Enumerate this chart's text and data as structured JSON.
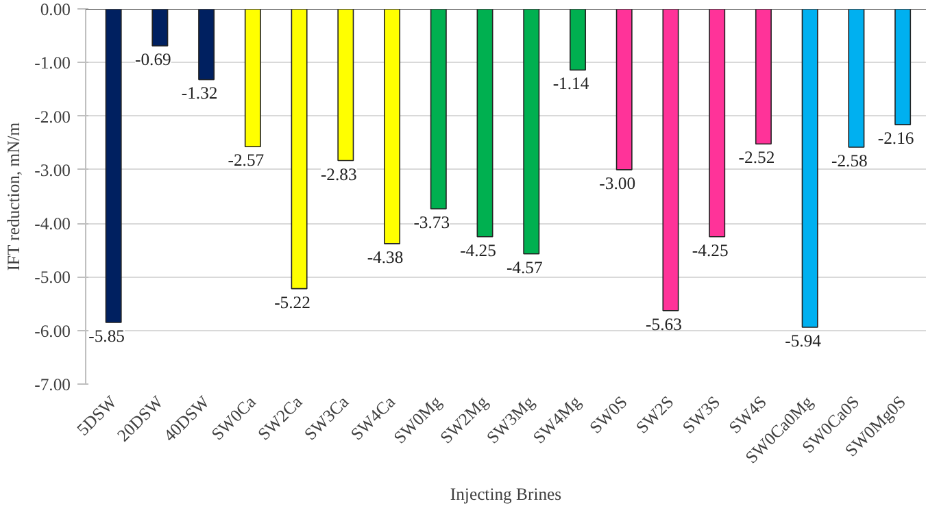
{
  "chart_data": {
    "type": "bar",
    "xlabel": "Injecting Brines",
    "ylabel": "IFT reduction, mN/m",
    "categories": [
      "5DSW",
      "20DSW",
      "40DSW",
      "SW0Ca",
      "SW2Ca",
      "SW3Ca",
      "SW4Ca",
      "SW0Mg",
      "SW2Mg",
      "SW3Mg",
      "SW4Mg",
      "SW0S",
      "SW2S",
      "SW3S",
      "SW4S",
      "SW0Ca0Mg",
      "SW0Ca0S",
      "SW0Mg0S"
    ],
    "values": [
      -5.85,
      -0.69,
      -1.32,
      -2.57,
      -5.22,
      -2.83,
      -4.38,
      -3.73,
      -4.25,
      -4.57,
      -1.14,
      -3.0,
      -5.63,
      -4.25,
      -2.52,
      -5.94,
      -2.58,
      -2.16
    ],
    "value_labels": [
      "-5.85",
      "-0.69",
      "-1.32",
      "-2.57",
      "-5.22",
      "-2.83",
      "-4.38",
      "-3.73",
      "-4.25",
      "-4.57",
      "-1.14",
      "-3.00",
      "-5.63",
      "-4.25",
      "-2.52",
      "-5.94",
      "-2.58",
      "-2.16"
    ],
    "colors": [
      "#002060",
      "#002060",
      "#002060",
      "#ffff00",
      "#ffff00",
      "#ffff00",
      "#ffff00",
      "#00b050",
      "#00b050",
      "#00b050",
      "#00b050",
      "#ff3399",
      "#ff3399",
      "#ff3399",
      "#ff3399",
      "#00b0f0",
      "#00b0f0",
      "#00b0f0"
    ],
    "ylim": [
      -7,
      0
    ],
    "yticks": [
      {
        "value": 0,
        "label": "0.00"
      },
      {
        "value": -1,
        "label": "-1.00"
      },
      {
        "value": -2,
        "label": "-2.00"
      },
      {
        "value": -3,
        "label": "-3.00"
      },
      {
        "value": -4,
        "label": "-4.00"
      },
      {
        "value": -5,
        "label": "-5.00"
      },
      {
        "value": -6,
        "label": "-6.00"
      },
      {
        "value": -7,
        "label": "-7.00"
      }
    ],
    "grid": "y"
  }
}
